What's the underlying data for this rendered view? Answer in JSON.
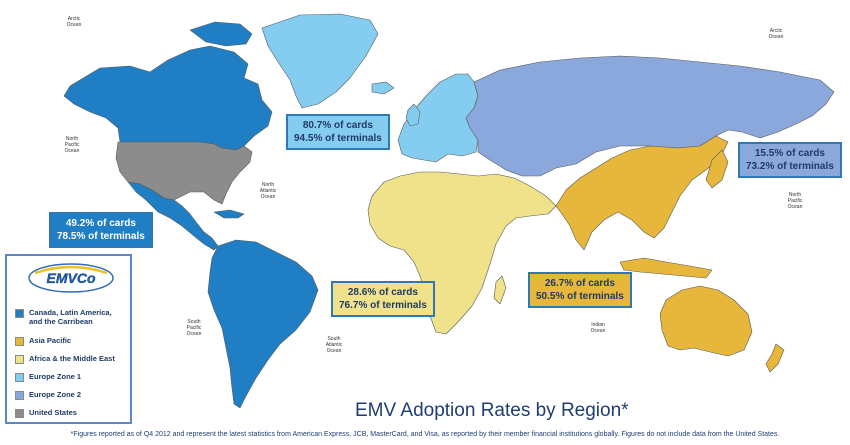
{
  "colors": {
    "canada_latam": "#1f7ec4",
    "asia_pacific": "#e6b73a",
    "africa_me": "#efe28a",
    "europe1": "#84cdf0",
    "europe2": "#8aa8dc",
    "us": "#8c8c8c",
    "ocean": "#ffffff",
    "border": "#5a5a5a"
  },
  "ocean_labels": [
    {
      "id": "arctic-left",
      "text": "Arctic Ocean"
    },
    {
      "id": "arctic-right",
      "text": "Arctic Ocean"
    },
    {
      "id": "north-pacific",
      "text": "North Pacific Ocean"
    },
    {
      "id": "north-atlantic",
      "text": "North Atlantic Ocean"
    },
    {
      "id": "south-pacific",
      "text": "South Pacific Ocean"
    },
    {
      "id": "south-atlantic",
      "text": "South Atlantic Ocean"
    },
    {
      "id": "indian",
      "text": "Indian Ocean"
    },
    {
      "id": "north-pacific-right",
      "text": "North Pacific Ocean"
    }
  ],
  "stats": {
    "europe1": {
      "cards": "80.7% of cards",
      "terminals": "94.5% of terminals"
    },
    "europe2": {
      "cards": "15.5% of cards",
      "terminals": "73.2% of terminals"
    },
    "canada_latam": {
      "cards": "49.2% of cards",
      "terminals": "78.5% of terminals"
    },
    "africa_me": {
      "cards": "28.6% of cards",
      "terminals": "76.7% of terminals"
    },
    "asia_pacific": {
      "cards": "26.7% of cards",
      "terminals": "50.5% of terminals"
    }
  },
  "legend": {
    "logo_text": "EMVCo",
    "items": [
      {
        "label": "Canada, Latin America, and the Carribean",
        "color": "#1f7ec4"
      },
      {
        "label": "Asia Pacific",
        "color": "#e6b73a"
      },
      {
        "label": "Africa & the Middle East",
        "color": "#efe28a"
      },
      {
        "label": "Europe Zone 1",
        "color": "#84cdf0"
      },
      {
        "label": "Europe Zone 2",
        "color": "#8aa8dc"
      },
      {
        "label": "United States",
        "color": "#8c8c8c"
      }
    ]
  },
  "title": "EMV Adoption Rates by Region*",
  "footnote": "*Figures reported as of Q4 2012 and represent the latest statistics from American Express, JCB, MasterCard, and Visa, as reported by their member financial institutions globally.  Figures do not include data from the United States."
}
